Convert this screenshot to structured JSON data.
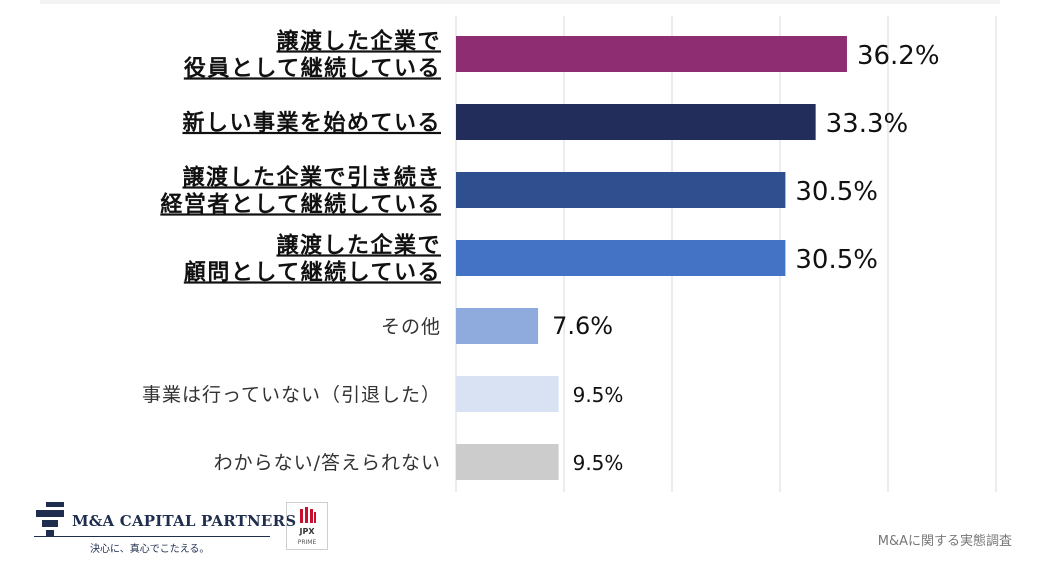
{
  "chart_data": {
    "type": "bar",
    "orientation": "horizontal",
    "categories": [
      [
        "譲渡した企業で",
        "役員として継続している"
      ],
      [
        "新しい事業を始めている"
      ],
      [
        "譲渡した企業で引き続き",
        "経営者として継続している"
      ],
      [
        "譲渡した企業で",
        "顧問として継続している"
      ],
      [
        "その他"
      ],
      [
        "事業は行っていない（引退した）"
      ],
      [
        "わからない/答えられない"
      ]
    ],
    "values": [
      36.2,
      33.3,
      30.5,
      30.5,
      7.6,
      9.5,
      9.5
    ],
    "value_labels": [
      "36.2%",
      "33.3%",
      "30.5%",
      "30.5%",
      "7.6%",
      "9.5%",
      "9.5%"
    ],
    "emphasized": [
      true,
      true,
      true,
      true,
      false,
      false,
      false
    ],
    "colors": [
      "#8e2d72",
      "#222d5c",
      "#2f4f8f",
      "#4472c4",
      "#8faadc",
      "#d9e2f2",
      "#cccccc"
    ],
    "xlim": [
      0,
      50
    ],
    "grid": true,
    "legend": "none"
  },
  "footer": {
    "company_name": "M&A CAPITAL PARTNERS",
    "tagline": "決心に、真心でこたえる。",
    "exchange_badge": "JPX",
    "exchange_sub": "PRIME",
    "source": "M&Aに関する実態調査"
  }
}
